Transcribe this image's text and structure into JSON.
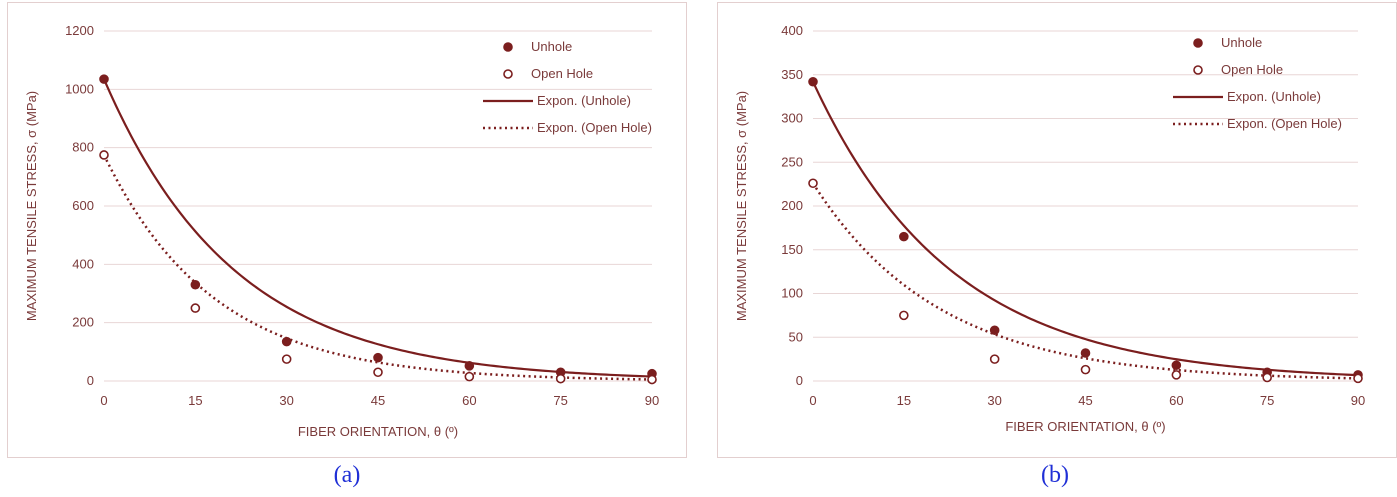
{
  "colors": {
    "series": "#7b1e1e",
    "grid": "#e8d6d6",
    "text": "#7a3a3a",
    "caption": "#1f2fd6"
  },
  "chart_data": [
    {
      "type": "scatter",
      "caption": "(a)",
      "xlabel": "FIBER ORIENTATION, θ (º)",
      "ylabel": "MAXIMUM TENSILE STRESS, σ (MPa)",
      "xlim": [
        0,
        90
      ],
      "ylim": [
        0,
        1200
      ],
      "xticks": [
        0,
        15,
        30,
        45,
        60,
        75,
        90
      ],
      "yticks": [
        0,
        200,
        400,
        600,
        800,
        1000,
        1200
      ],
      "grid": true,
      "legend_position": "top-right",
      "series": [
        {
          "name": "Unhole",
          "marker": "filled-circle",
          "x": [
            0,
            15,
            30,
            45,
            60,
            75,
            90
          ],
          "y": [
            1035,
            330,
            135,
            80,
            52,
            30,
            25
          ]
        },
        {
          "name": "Open Hole",
          "marker": "open-circle",
          "x": [
            0,
            15,
            30,
            45,
            60,
            75,
            90
          ],
          "y": [
            775,
            250,
            75,
            30,
            15,
            8,
            5
          ]
        },
        {
          "name": "Expon. (Unhole)",
          "line": "solid",
          "trend": "exponential",
          "a": 1035,
          "b": -0.0468
        },
        {
          "name": "Expon. (Open Hole)",
          "line": "dotted",
          "trend": "exponential",
          "a": 775,
          "b": -0.0555
        }
      ]
    },
    {
      "type": "scatter",
      "caption": "(b)",
      "xlabel": "FIBER ORIENTATION, θ (º)",
      "ylabel": "MAXIMUM TENSILE STRESS, σ (MPa)",
      "xlim": [
        0,
        90
      ],
      "ylim": [
        0,
        400
      ],
      "xticks": [
        0,
        15,
        30,
        45,
        60,
        75,
        90
      ],
      "yticks": [
        0,
        50,
        100,
        150,
        200,
        250,
        300,
        350,
        400
      ],
      "grid": true,
      "legend_position": "top-right",
      "series": [
        {
          "name": "Unhole",
          "marker": "filled-circle",
          "x": [
            0,
            15,
            30,
            45,
            60,
            75,
            90
          ],
          "y": [
            342,
            165,
            58,
            32,
            18,
            10,
            7
          ]
        },
        {
          "name": "Open Hole",
          "marker": "open-circle",
          "x": [
            0,
            15,
            30,
            45,
            60,
            75,
            90
          ],
          "y": [
            226,
            75,
            25,
            13,
            7,
            4,
            3
          ]
        },
        {
          "name": "Expon. (Unhole)",
          "line": "solid",
          "trend": "exponential",
          "a": 342,
          "b": -0.0437
        },
        {
          "name": "Expon. (Open Hole)",
          "line": "dotted",
          "trend": "exponential",
          "a": 226,
          "b": -0.0481
        }
      ]
    }
  ]
}
